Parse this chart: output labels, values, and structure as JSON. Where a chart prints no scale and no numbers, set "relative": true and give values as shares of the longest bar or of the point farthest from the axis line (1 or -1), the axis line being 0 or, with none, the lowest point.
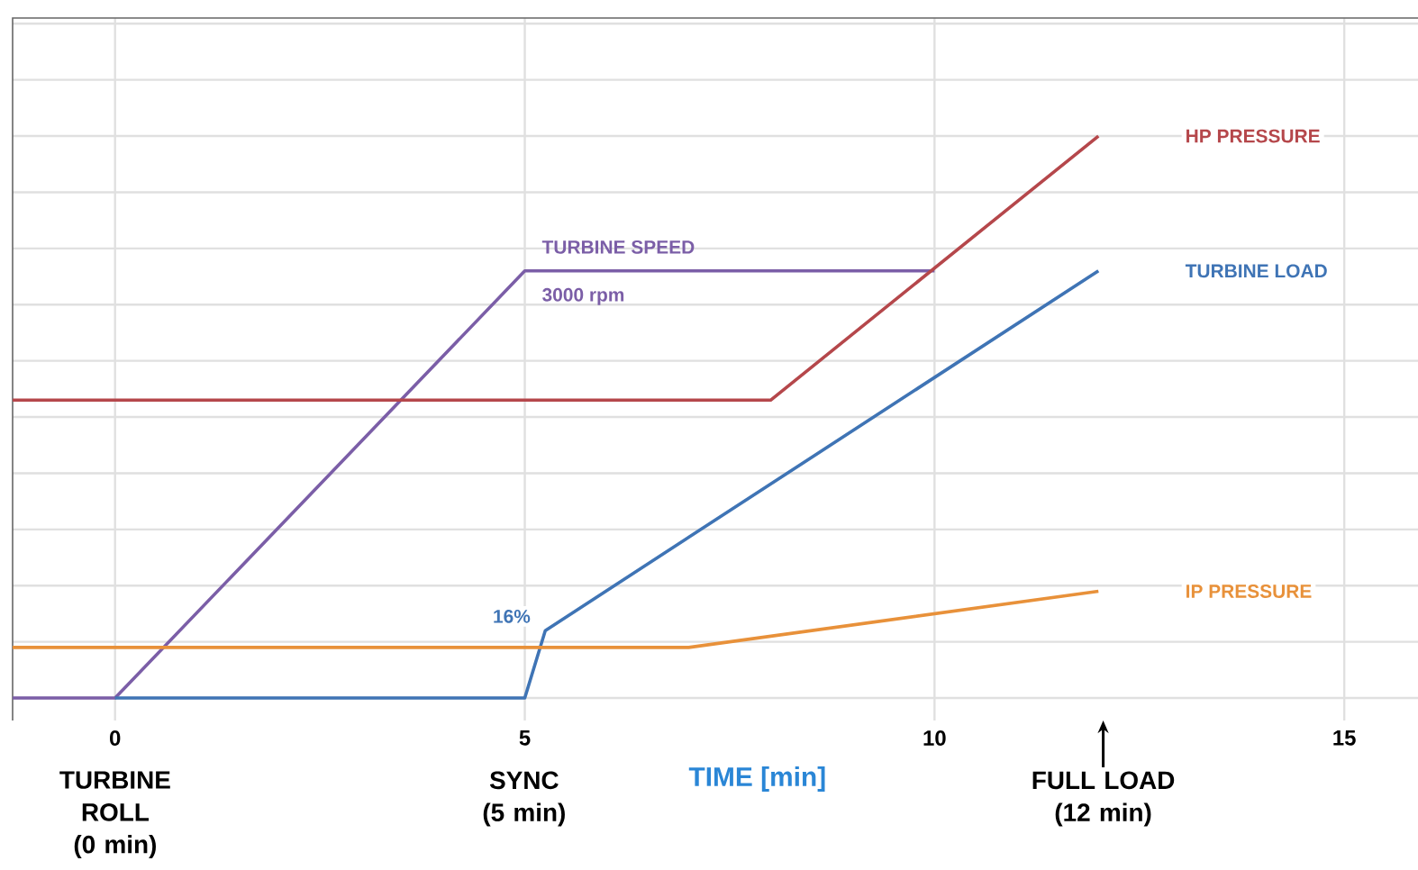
{
  "chart_data": {
    "type": "line",
    "relative": true,
    "xlabel": "TIME [min]",
    "xlim": [
      -1.25,
      15.9
    ],
    "xticks": [
      0,
      5,
      10,
      15
    ],
    "grid": true,
    "legend": false,
    "marker": "none",
    "line_style": "solid",
    "series": [
      {
        "name": "TURBINE SPEED",
        "color": "#7b5ea7",
        "x": [
          -1.25,
          0,
          5,
          10
        ],
        "values": [
          0,
          0,
          0.76,
          0.76
        ]
      },
      {
        "name": "HP PRESSURE",
        "color": "#b5474b",
        "x": [
          -1.25,
          8,
          12
        ],
        "values": [
          0.53,
          0.53,
          1
        ]
      },
      {
        "name": "TURBINE LOAD",
        "color": "#3f74b5",
        "x": [
          0,
          5,
          5.25,
          12
        ],
        "values": [
          0,
          0,
          0.12,
          0.76
        ]
      },
      {
        "name": "IP PRESSURE",
        "color": "#e8913a",
        "x": [
          -1.25,
          7,
          12
        ],
        "values": [
          0.09,
          0.09,
          0.19
        ]
      }
    ],
    "annotations": [
      {
        "text": "3000 rpm",
        "x": 5,
        "y": 0.76
      },
      {
        "text": "16%",
        "x": 5.25,
        "y": 0.12
      },
      "TURBINE ROLL (0 min)",
      "SYNC (5 min)",
      "FULL LOAD (12 min)"
    ]
  }
}
